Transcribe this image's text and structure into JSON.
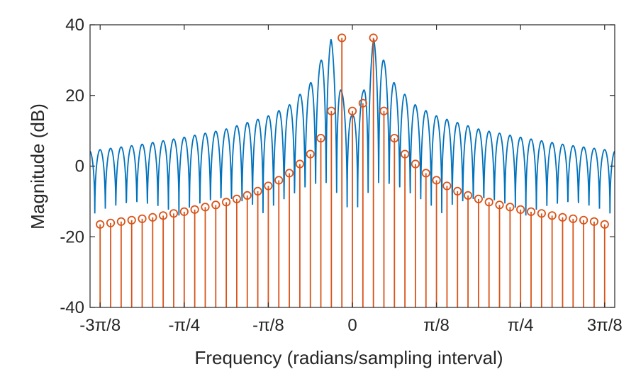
{
  "chart_data": {
    "type": "line",
    "xlabel": "Frequency (radians/sampling interval)",
    "ylabel": "Magnitude (dB)",
    "xlim": [
      -1.2252,
      1.2252
    ],
    "ylim": [
      -40,
      40
    ],
    "grid": false,
    "x_ticks": [
      {
        "value": -1.1781,
        "label": "-3π/8"
      },
      {
        "value": -0.7854,
        "label": "-π/4"
      },
      {
        "value": -0.3927,
        "label": "-π/8"
      },
      {
        "value": 0,
        "label": "0"
      },
      {
        "value": 0.3927,
        "label": "π/8"
      },
      {
        "value": 0.7854,
        "label": "π/4"
      },
      {
        "value": 1.1781,
        "label": "3π/8"
      }
    ],
    "y_ticks": [
      {
        "value": -40,
        "label": "-40"
      },
      {
        "value": -20,
        "label": "-20"
      },
      {
        "value": 0,
        "label": "0"
      },
      {
        "value": 20,
        "label": "20"
      },
      {
        "value": 40,
        "label": "40"
      }
    ],
    "series": [
      {
        "kind": "line",
        "color": "#0072BD",
        "envelope_points": [
          [
            -1.2252,
            4.3
          ],
          [
            -1.0,
            6.0
          ],
          [
            -0.8,
            8.0
          ],
          [
            -0.6,
            10.3
          ],
          [
            -0.4,
            14.0
          ],
          [
            -0.3,
            17.0
          ],
          [
            -0.2,
            23.0
          ],
          [
            -0.1,
            36.0
          ],
          [
            -0.05,
            21.0
          ],
          [
            0,
            14.0
          ],
          [
            0.05,
            21.0
          ],
          [
            0.1,
            36.0
          ],
          [
            0.2,
            23.0
          ],
          [
            0.3,
            17.0
          ],
          [
            0.4,
            14.0
          ],
          [
            0.6,
            10.3
          ],
          [
            0.8,
            8.0
          ],
          [
            1.0,
            6.0
          ],
          [
            1.2252,
            4.3
          ]
        ],
        "lobe_spacing": 0.0491,
        "null_value": -16
      },
      {
        "kind": "stem",
        "color": "#D95319",
        "baseline": -40,
        "x": [
          -1.1781,
          -1.129,
          -1.0799,
          -1.0308,
          -0.9817,
          -0.9327,
          -0.8836,
          -0.8345,
          -0.7854,
          -0.7363,
          -0.6872,
          -0.6381,
          -0.589,
          -0.54,
          -0.4909,
          -0.4418,
          -0.3927,
          -0.3436,
          -0.2945,
          -0.2454,
          -0.1963,
          -0.1473,
          -0.0982,
          -0.0491,
          0.0,
          0.0491,
          0.0982,
          0.1473,
          0.1963,
          0.2454,
          0.2945,
          0.3436,
          0.3927,
          0.4418,
          0.4909,
          0.54,
          0.589,
          0.6381,
          0.6872,
          0.7363,
          0.7854,
          0.8345,
          0.8836,
          0.9327,
          0.9817,
          1.0308,
          1.0799,
          1.129,
          1.1781
        ],
        "values": [
          -16.5,
          -16.1,
          -15.7,
          -15.3,
          -14.9,
          -14.5,
          -14.0,
          -13.4,
          -12.9,
          -12.3,
          -11.6,
          -11.0,
          -10.2,
          -9.3,
          -8.3,
          -7.1,
          -5.6,
          -4.0,
          -2.0,
          0.6,
          3.4,
          7.9,
          15.6,
          36.3,
          15.6,
          17.8,
          36.3,
          15.6,
          7.9,
          3.4,
          0.6,
          -2.0,
          -4.0,
          -5.6,
          -7.1,
          -8.3,
          -9.3,
          -10.2,
          -11.0,
          -11.6,
          -12.3,
          -12.9,
          -13.4,
          -14.0,
          -14.5,
          -14.9,
          -15.3,
          -15.7,
          -16.5
        ]
      }
    ]
  }
}
